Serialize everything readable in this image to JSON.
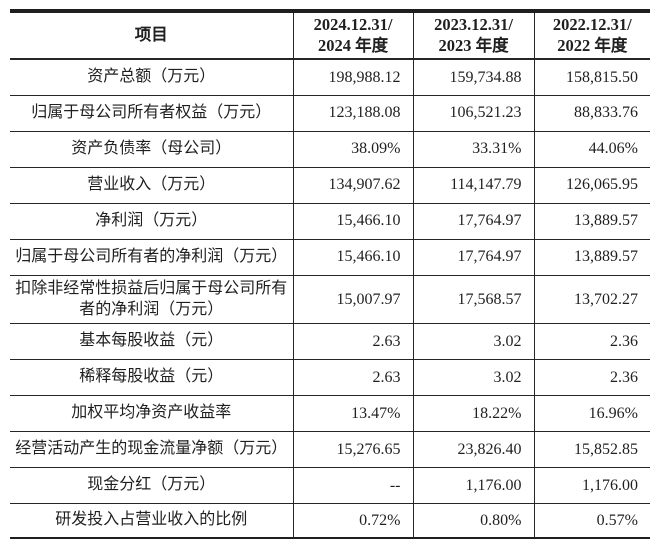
{
  "colors": {
    "text": "#1f1f1f",
    "line": "#262626",
    "background": "#ffffff"
  },
  "table": {
    "header": {
      "item": "项目",
      "periods": [
        {
          "line1": "2024.12.31/",
          "line2": "2024 年度"
        },
        {
          "line1": "2023.12.31/",
          "line2": "2023 年度"
        },
        {
          "line1": "2022.12.31/",
          "line2": "2022 年度"
        }
      ]
    },
    "rows": [
      {
        "label": "资产总额（万元）",
        "values": [
          "198,988.12",
          "159,734.88",
          "158,815.50"
        ]
      },
      {
        "label": "归属于母公司所有者权益（万元）",
        "values": [
          "123,188.08",
          "106,521.23",
          "88,833.76"
        ]
      },
      {
        "label": "资产负债率（母公司）",
        "values": [
          "38.09%",
          "33.31%",
          "44.06%"
        ]
      },
      {
        "label": "营业收入（万元）",
        "values": [
          "134,907.62",
          "114,147.79",
          "126,065.95"
        ]
      },
      {
        "label": "净利润（万元）",
        "values": [
          "15,466.10",
          "17,764.97",
          "13,889.57"
        ]
      },
      {
        "label": "归属于母公司所有者的净利润（万元）",
        "values": [
          "15,466.10",
          "17,764.97",
          "13,889.57"
        ]
      },
      {
        "label": "扣除非经常性损益后归属于母公司所有者的净利润（万元）",
        "values": [
          "15,007.97",
          "17,568.57",
          "13,702.27"
        ]
      },
      {
        "label": "基本每股收益（元）",
        "values": [
          "2.63",
          "3.02",
          "2.36"
        ]
      },
      {
        "label": "稀释每股收益（元）",
        "values": [
          "2.63",
          "3.02",
          "2.36"
        ]
      },
      {
        "label": "加权平均净资产收益率",
        "values": [
          "13.47%",
          "18.22%",
          "16.96%"
        ]
      },
      {
        "label": "经营活动产生的现金流量净额（万元）",
        "values": [
          "15,276.65",
          "23,826.40",
          "15,852.85"
        ]
      },
      {
        "label": "现金分红（万元）",
        "values": [
          "--",
          "1,176.00",
          "1,176.00"
        ]
      },
      {
        "label": "研发投入占营业收入的比例",
        "values": [
          "0.72%",
          "0.80%",
          "0.57%"
        ]
      }
    ]
  }
}
